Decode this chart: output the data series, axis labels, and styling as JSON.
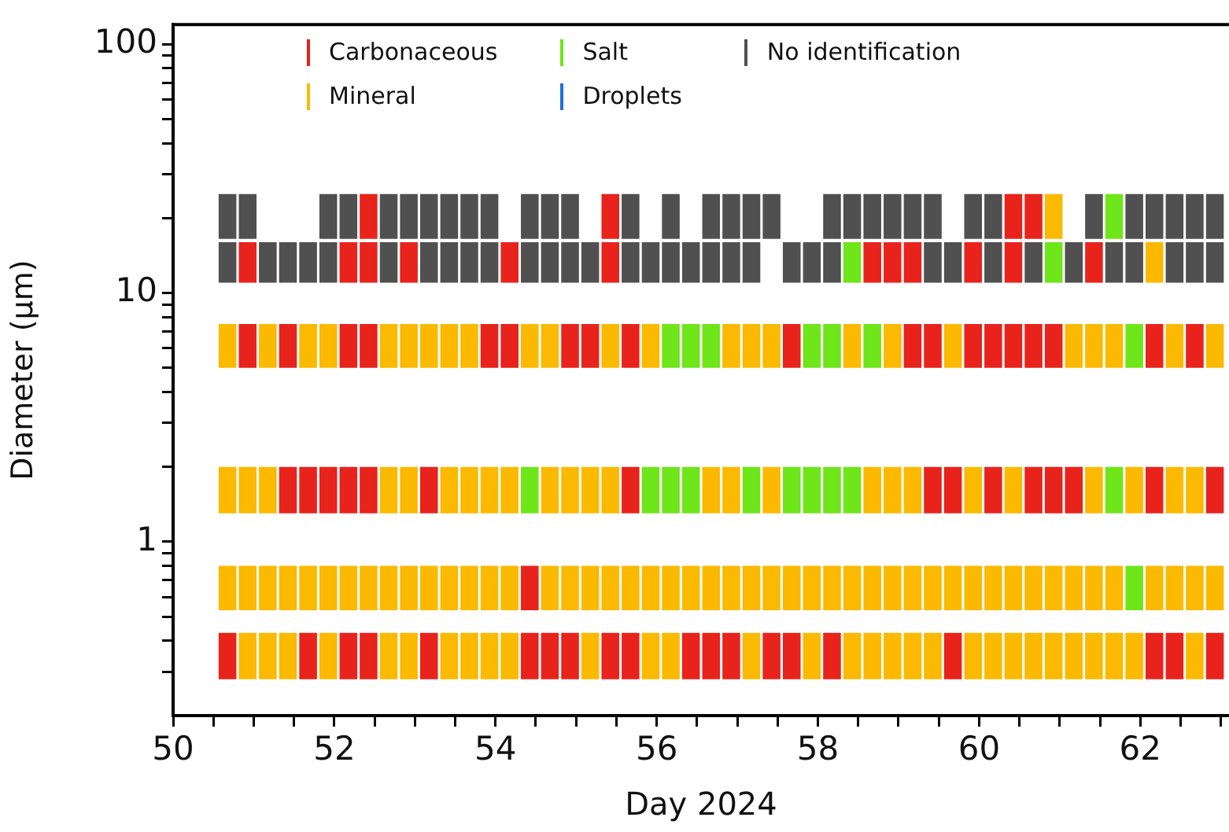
{
  "chart_data": {
    "type": "bar",
    "xlabel": "Day 2024",
    "ylabel": "Diameter (μm)",
    "log": "y",
    "grid": false,
    "legend": "top",
    "xlim": [
      50,
      63.1
    ],
    "xticks": [
      50,
      {
        "value": 50.5,
        "label": null
      },
      {
        "value": 51,
        "label": null
      },
      {
        "value": 51.5,
        "label": null
      },
      52,
      {
        "value": 52.5,
        "label": null
      },
      {
        "value": 53,
        "label": null
      },
      {
        "value": 53.5,
        "label": null
      },
      54,
      {
        "value": 54.5,
        "label": null
      },
      {
        "value": 55,
        "label": null
      },
      {
        "value": 55.5,
        "label": null
      },
      56,
      {
        "value": 56.5,
        "label": null
      },
      {
        "value": 57,
        "label": null
      },
      {
        "value": 57.5,
        "label": null
      },
      58,
      {
        "value": 58.5,
        "label": null
      },
      {
        "value": 59,
        "label": null
      },
      {
        "value": 59.5,
        "label": null
      },
      60,
      {
        "value": 60.5,
        "label": null
      },
      {
        "value": 61,
        "label": null
      },
      {
        "value": 61.5,
        "label": null
      },
      62,
      {
        "value": 62.5,
        "label": null
      },
      {
        "value": 63,
        "label": null
      }
    ],
    "ylim": [
      0.2,
      120
    ],
    "yticks": [
      {
        "value": 0.3,
        "label": null
      },
      {
        "value": 0.4,
        "label": null
      },
      {
        "value": 0.5,
        "label": null
      },
      {
        "value": 0.6,
        "label": null
      },
      {
        "value": 0.7,
        "label": null
      },
      {
        "value": 0.8,
        "label": null
      },
      {
        "value": 0.9,
        "label": null
      },
      1,
      {
        "value": 2,
        "label": null
      },
      {
        "value": 3,
        "label": null
      },
      {
        "value": 4,
        "label": null
      },
      {
        "value": 5,
        "label": null
      },
      {
        "value": 6,
        "label": null
      },
      {
        "value": 7,
        "label": null
      },
      {
        "value": 8,
        "label": null
      },
      {
        "value": 9,
        "label": null
      },
      10,
      {
        "value": 20,
        "label": null
      },
      {
        "value": 30,
        "label": null
      },
      {
        "value": 40,
        "label": null
      },
      {
        "value": 50,
        "label": null
      },
      {
        "value": 60,
        "label": null
      },
      {
        "value": 70,
        "label": null
      },
      {
        "value": 80,
        "label": null
      },
      {
        "value": 90,
        "label": null
      },
      100
    ],
    "series": [
      {
        "name": "Carbonaceous",
        "color": "#e8231c"
      },
      {
        "name": "Mineral",
        "color": "#fbb900"
      },
      {
        "name": "Salt",
        "color": "#6ee619"
      },
      {
        "name": "Droplets",
        "color": "#1f6fd6"
      },
      {
        "name": "No identification",
        "color": "#505050"
      },
      {
        "x": [
          50.675,
          50.925,
          51.175,
          51.425,
          51.675,
          51.925,
          52.175,
          52.425,
          52.675,
          52.925,
          53.175,
          53.425,
          53.675,
          53.925,
          54.175,
          54.425,
          54.675,
          54.925,
          55.175,
          55.425,
          55.675,
          55.925,
          56.175,
          56.425,
          56.675,
          56.925,
          57.175,
          57.425,
          57.675,
          57.925,
          58.175,
          58.425,
          58.675,
          58.925,
          59.175,
          59.425,
          59.675,
          59.925,
          60.175,
          60.425,
          60.675,
          60.925,
          61.175,
          61.425,
          61.675,
          61.925,
          62.175,
          62.425,
          62.675,
          62.925
        ],
        "base": [
          0.28,
          0.28,
          0.28,
          0.28,
          0.28,
          0.28,
          0.28,
          0.28,
          0.28,
          0.28,
          0.28,
          0.28,
          0.28,
          0.28,
          0.28,
          0.28,
          0.28,
          0.28,
          0.28,
          0.28,
          0.28,
          0.28,
          0.28,
          0.28,
          0.28,
          0.28,
          0.28,
          0.28,
          0.28,
          0.28,
          0.28,
          0.28,
          0.28,
          0.28,
          0.28,
          0.28,
          0.28,
          0.28,
          0.28,
          0.28,
          0.28,
          0.28,
          0.28,
          0.28,
          0.28,
          0.28,
          0.28,
          0.28,
          0.28,
          0.28
        ],
        "values": [
          0.15,
          0.15,
          0.15,
          0.15,
          0.15,
          0.15,
          0.15,
          0.15,
          0.15,
          0.15,
          0.15,
          0.15,
          0.15,
          0.15,
          0.15,
          0.15,
          0.15,
          0.15,
          0.15,
          0.15,
          0.15,
          0.15,
          0.15,
          0.15,
          0.15,
          0.15,
          0.15,
          0.15,
          0.15,
          0.15,
          0.15,
          0.15,
          0.15,
          0.15,
          0.15,
          0.15,
          0.15,
          0.15,
          0.15,
          0.15,
          0.15,
          0.15,
          0.15,
          0.15,
          0.15,
          0.15,
          0.15,
          0.15,
          0.15,
          0.15
        ],
        "colors": [
          "#e8231c",
          "#fbb900",
          "#fbb900",
          "#fbb900",
          "#e8231c",
          "#fbb900",
          "#e8231c",
          "#e8231c",
          "#fbb900",
          "#fbb900",
          "#e8231c",
          "#fbb900",
          "#fbb900",
          "#fbb900",
          "#fbb900",
          "#e8231c",
          "#e8231c",
          "#e8231c",
          "#fbb900",
          "#e8231c",
          "#e8231c",
          "#fbb900",
          "#fbb900",
          "#e8231c",
          "#e8231c",
          "#e8231c",
          "#fbb900",
          "#e8231c",
          "#e8231c",
          "#fbb900",
          "#e8231c",
          "#fbb900",
          "#fbb900",
          "#fbb900",
          "#fbb900",
          "#fbb900",
          "#e8231c",
          "#fbb900",
          "#fbb900",
          "#fbb900",
          "#fbb900",
          "#fbb900",
          "#fbb900",
          "#fbb900",
          "#fbb900",
          "#fbb900",
          "#e8231c",
          "#e8231c",
          "#fbb900",
          "#e8231c"
        ]
      },
      {
        "x": [
          50.675,
          50.925,
          51.175,
          51.425,
          51.675,
          51.925,
          52.175,
          52.425,
          52.675,
          52.925,
          53.175,
          53.425,
          53.675,
          53.925,
          54.175,
          54.425,
          54.675,
          54.925,
          55.175,
          55.425,
          55.675,
          55.925,
          56.175,
          56.425,
          56.675,
          56.925,
          57.175,
          57.425,
          57.675,
          57.925,
          58.175,
          58.425,
          58.675,
          58.925,
          59.175,
          59.425,
          59.675,
          59.925,
          60.175,
          60.425,
          60.675,
          60.925,
          61.175,
          61.425,
          61.675,
          61.925,
          62.175,
          62.425,
          62.675,
          62.925
        ],
        "base": [
          0.53,
          0.53,
          0.53,
          0.53,
          0.53,
          0.53,
          0.53,
          0.53,
          0.53,
          0.53,
          0.53,
          0.53,
          0.53,
          0.53,
          0.53,
          0.53,
          0.53,
          0.53,
          0.53,
          0.53,
          0.53,
          0.53,
          0.53,
          0.53,
          0.53,
          0.53,
          0.53,
          0.53,
          0.53,
          0.53,
          0.53,
          0.53,
          0.53,
          0.53,
          0.53,
          0.53,
          0.53,
          0.53,
          0.53,
          0.53,
          0.53,
          0.53,
          0.53,
          0.53,
          0.53,
          0.53,
          0.53,
          0.53,
          0.53,
          0.53
        ],
        "values": [
          0.27,
          0.27,
          0.27,
          0.27,
          0.27,
          0.27,
          0.27,
          0.27,
          0.27,
          0.27,
          0.27,
          0.27,
          0.27,
          0.27,
          0.27,
          0.27,
          0.27,
          0.27,
          0.27,
          0.27,
          0.27,
          0.27,
          0.27,
          0.27,
          0.27,
          0.27,
          0.27,
          0.27,
          0.27,
          0.27,
          0.27,
          0.27,
          0.27,
          0.27,
          0.27,
          0.27,
          0.27,
          0.27,
          0.27,
          0.27,
          0.27,
          0.27,
          0.27,
          0.27,
          0.27,
          0.27,
          0.27,
          0.27,
          0.27,
          0.27
        ],
        "colors": [
          "#fbb900",
          "#fbb900",
          "#fbb900",
          "#fbb900",
          "#fbb900",
          "#fbb900",
          "#fbb900",
          "#fbb900",
          "#fbb900",
          "#fbb900",
          "#fbb900",
          "#fbb900",
          "#fbb900",
          "#fbb900",
          "#fbb900",
          "#e8231c",
          "#fbb900",
          "#fbb900",
          "#fbb900",
          "#fbb900",
          "#fbb900",
          "#fbb900",
          "#fbb900",
          "#fbb900",
          "#fbb900",
          "#fbb900",
          "#fbb900",
          "#fbb900",
          "#fbb900",
          "#fbb900",
          "#fbb900",
          "#fbb900",
          "#fbb900",
          "#fbb900",
          "#fbb900",
          "#fbb900",
          "#fbb900",
          "#fbb900",
          "#fbb900",
          "#fbb900",
          "#fbb900",
          "#fbb900",
          "#fbb900",
          "#fbb900",
          "#fbb900",
          "#6ee619",
          "#fbb900",
          "#fbb900",
          "#fbb900",
          "#fbb900"
        ]
      },
      {
        "x": [
          50.675,
          50.925,
          51.175,
          51.425,
          51.675,
          51.925,
          52.175,
          52.425,
          52.675,
          52.925,
          53.175,
          53.425,
          53.675,
          53.925,
          54.175,
          54.425,
          54.675,
          54.925,
          55.175,
          55.425,
          55.675,
          55.925,
          56.175,
          56.425,
          56.675,
          56.925,
          57.175,
          57.425,
          57.675,
          57.925,
          58.175,
          58.425,
          58.675,
          58.925,
          59.175,
          59.425,
          59.675,
          59.925,
          60.175,
          60.425,
          60.675,
          60.925,
          61.175,
          61.425,
          61.675,
          61.925,
          62.175,
          62.425,
          62.675,
          62.925
        ],
        "base": [
          1.3,
          1.3,
          1.3,
          1.3,
          1.3,
          1.3,
          1.3,
          1.3,
          1.3,
          1.3,
          1.3,
          1.3,
          1.3,
          1.3,
          1.3,
          1.3,
          1.3,
          1.3,
          1.3,
          1.3,
          1.3,
          1.3,
          1.3,
          1.3,
          1.3,
          1.3,
          1.3,
          1.3,
          1.3,
          1.3,
          1.3,
          1.3,
          1.3,
          1.3,
          1.3,
          1.3,
          1.3,
          1.3,
          1.3,
          1.3,
          1.3,
          1.3,
          1.3,
          1.3,
          1.3,
          1.3,
          1.3,
          1.3,
          1.3,
          1.3
        ],
        "values": [
          0.7,
          0.7,
          0.7,
          0.7,
          0.7,
          0.7,
          0.7,
          0.7,
          0.7,
          0.7,
          0.7,
          0.7,
          0.7,
          0.7,
          0.7,
          0.7,
          0.7,
          0.7,
          0.7,
          0.7,
          0.7,
          0.7,
          0.7,
          0.7,
          0.7,
          0.7,
          0.7,
          0.7,
          0.7,
          0.7,
          0.7,
          0.7,
          0.7,
          0.7,
          0.7,
          0.7,
          0.7,
          0.7,
          0.7,
          0.7,
          0.7,
          0.7,
          0.7,
          0.7,
          0.7,
          0.7,
          0.7,
          0.7,
          0.7,
          0.7
        ],
        "colors": [
          "#fbb900",
          "#fbb900",
          "#fbb900",
          "#e8231c",
          "#e8231c",
          "#e8231c",
          "#e8231c",
          "#e8231c",
          "#fbb900",
          "#fbb900",
          "#e8231c",
          "#fbb900",
          "#fbb900",
          "#fbb900",
          "#fbb900",
          "#6ee619",
          "#fbb900",
          "#fbb900",
          "#fbb900",
          "#fbb900",
          "#e8231c",
          "#6ee619",
          "#6ee619",
          "#6ee619",
          "#fbb900",
          "#fbb900",
          "#6ee619",
          "#fbb900",
          "#6ee619",
          "#6ee619",
          "#6ee619",
          "#6ee619",
          "#fbb900",
          "#fbb900",
          "#fbb900",
          "#e8231c",
          "#e8231c",
          "#fbb900",
          "#e8231c",
          "#fbb900",
          "#e8231c",
          "#e8231c",
          "#e8231c",
          "#fbb900",
          "#6ee619",
          "#fbb900",
          "#e8231c",
          "#fbb900",
          "#fbb900",
          "#e8231c"
        ]
      },
      {
        "x": [
          50.675,
          50.925,
          51.175,
          51.425,
          51.675,
          51.925,
          52.175,
          52.425,
          52.675,
          52.925,
          53.175,
          53.425,
          53.675,
          53.925,
          54.175,
          54.425,
          54.675,
          54.925,
          55.175,
          55.425,
          55.675,
          55.925,
          56.175,
          56.425,
          56.675,
          56.925,
          57.175,
          57.425,
          57.675,
          57.925,
          58.175,
          58.425,
          58.675,
          58.925,
          59.175,
          59.425,
          59.675,
          59.925,
          60.175,
          60.425,
          60.675,
          60.925,
          61.175,
          61.425,
          61.675,
          61.925,
          62.175,
          62.425,
          62.675,
          62.925
        ],
        "base": [
          5,
          5,
          5,
          5,
          5,
          5,
          5,
          5,
          5,
          5,
          5,
          5,
          5,
          5,
          5,
          5,
          5,
          5,
          5,
          5,
          5,
          5,
          5,
          5,
          5,
          5,
          5,
          5,
          5,
          5,
          5,
          5,
          5,
          5,
          5,
          5,
          5,
          5,
          5,
          5,
          5,
          5,
          5,
          5,
          5,
          5,
          5,
          5,
          5,
          5
        ],
        "values": [
          2.5,
          2.5,
          2.5,
          2.5,
          2.5,
          2.5,
          2.5,
          2.5,
          2.5,
          2.5,
          2.5,
          2.5,
          2.5,
          2.5,
          2.5,
          2.5,
          2.5,
          2.5,
          2.5,
          2.5,
          2.5,
          2.5,
          2.5,
          2.5,
          2.5,
          2.5,
          2.5,
          2.5,
          2.5,
          2.5,
          2.5,
          2.5,
          2.5,
          2.5,
          2.5,
          2.5,
          2.5,
          2.5,
          2.5,
          2.5,
          2.5,
          2.5,
          2.5,
          2.5,
          2.5,
          2.5,
          2.5,
          2.5,
          2.5,
          2.5
        ],
        "colors": [
          "#fbb900",
          "#e8231c",
          "#fbb900",
          "#e8231c",
          "#fbb900",
          "#fbb900",
          "#e8231c",
          "#e8231c",
          "#fbb900",
          "#fbb900",
          "#fbb900",
          "#fbb900",
          "#fbb900",
          "#e8231c",
          "#e8231c",
          "#fbb900",
          "#fbb900",
          "#e8231c",
          "#e8231c",
          "#fbb900",
          "#e8231c",
          "#fbb900",
          "#6ee619",
          "#6ee619",
          "#6ee619",
          "#fbb900",
          "#fbb900",
          "#fbb900",
          "#e8231c",
          "#6ee619",
          "#6ee619",
          "#fbb900",
          "#6ee619",
          "#fbb900",
          "#e8231c",
          "#e8231c",
          "#fbb900",
          "#e8231c",
          "#e8231c",
          "#e8231c",
          "#e8231c",
          "#e8231c",
          "#fbb900",
          "#fbb900",
          "#fbb900",
          "#6ee619",
          "#e8231c",
          "#fbb900",
          "#e8231c",
          "#fbb900"
        ]
      },
      {
        "x": [
          50.675,
          50.925,
          51.175,
          51.425,
          51.675,
          51.925,
          52.175,
          52.425,
          52.675,
          52.925,
          53.175,
          53.425,
          53.675,
          53.925,
          54.175,
          54.425,
          54.675,
          54.925,
          55.175,
          55.425,
          55.675,
          55.925,
          56.175,
          56.425,
          56.675,
          56.925,
          57.175,
          57.675,
          57.925,
          58.175,
          58.425,
          58.675,
          58.925,
          59.175,
          59.425,
          59.675,
          59.925,
          60.175,
          60.425,
          60.675,
          60.925,
          61.175,
          61.425,
          61.675,
          61.925,
          62.175,
          62.425,
          62.675,
          62.925
        ],
        "base": [
          11,
          11,
          11,
          11,
          11,
          11,
          11,
          11,
          11,
          11,
          11,
          11,
          11,
          11,
          11,
          11,
          11,
          11,
          11,
          11,
          11,
          11,
          11,
          11,
          11,
          11,
          11,
          11,
          11,
          11,
          11,
          11,
          11,
          11,
          11,
          11,
          11,
          11,
          11,
          11,
          11,
          11,
          11,
          11,
          11,
          11,
          11,
          11,
          11
        ],
        "values": [
          5,
          5,
          5,
          5,
          5,
          5,
          5,
          5,
          5,
          5,
          5,
          5,
          5,
          5,
          5,
          5,
          5,
          5,
          5,
          5,
          5,
          5,
          5,
          5,
          5,
          5,
          5,
          5,
          5,
          5,
          5,
          5,
          5,
          5,
          5,
          5,
          5,
          5,
          5,
          5,
          5,
          5,
          5,
          5,
          5,
          5,
          5,
          5,
          5
        ],
        "colors": [
          "#505050",
          "#e8231c",
          "#505050",
          "#505050",
          "#505050",
          "#505050",
          "#e8231c",
          "#e8231c",
          "#505050",
          "#e8231c",
          "#505050",
          "#505050",
          "#505050",
          "#505050",
          "#e8231c",
          "#505050",
          "#505050",
          "#505050",
          "#505050",
          "#e8231c",
          "#505050",
          "#505050",
          "#505050",
          "#505050",
          "#505050",
          "#505050",
          "#505050",
          "#505050",
          "#505050",
          "#505050",
          "#6ee619",
          "#e8231c",
          "#e8231c",
          "#e8231c",
          "#505050",
          "#505050",
          "#e8231c",
          "#505050",
          "#e8231c",
          "#505050",
          "#6ee619",
          "#505050",
          "#e8231c",
          "#505050",
          "#505050",
          "#fbb900",
          "#505050",
          "#505050",
          "#505050"
        ]
      },
      {
        "x": [
          50.675,
          50.925,
          51.925,
          52.175,
          52.425,
          52.675,
          52.925,
          53.175,
          53.425,
          53.675,
          53.925,
          54.425,
          54.675,
          54.925,
          55.425,
          55.675,
          56.175,
          56.675,
          56.925,
          57.175,
          57.425,
          58.175,
          58.425,
          58.675,
          58.925,
          59.175,
          59.425,
          59.925,
          60.175,
          60.425,
          60.675,
          60.925,
          61.425,
          61.675,
          61.925,
          62.175,
          62.425,
          62.675,
          62.925
        ],
        "base": [
          16.5,
          16.5,
          16.5,
          16.5,
          16.5,
          16.5,
          16.5,
          16.5,
          16.5,
          16.5,
          16.5,
          16.5,
          16.5,
          16.5,
          16.5,
          16.5,
          16.5,
          16.5,
          16.5,
          16.5,
          16.5,
          16.5,
          16.5,
          16.5,
          16.5,
          16.5,
          16.5,
          16.5,
          16.5,
          16.5,
          16.5,
          16.5,
          16.5,
          16.5,
          16.5,
          16.5,
          16.5,
          16.5,
          16.5
        ],
        "values": [
          8.5,
          8.5,
          8.5,
          8.5,
          8.5,
          8.5,
          8.5,
          8.5,
          8.5,
          8.5,
          8.5,
          8.5,
          8.5,
          8.5,
          8.5,
          8.5,
          8.5,
          8.5,
          8.5,
          8.5,
          8.5,
          8.5,
          8.5,
          8.5,
          8.5,
          8.5,
          8.5,
          8.5,
          8.5,
          8.5,
          8.5,
          8.5,
          8.5,
          8.5,
          8.5,
          8.5,
          8.5,
          8.5,
          8.5
        ],
        "colors": [
          "#505050",
          "#505050",
          "#505050",
          "#505050",
          "#e8231c",
          "#505050",
          "#505050",
          "#505050",
          "#505050",
          "#505050",
          "#505050",
          "#505050",
          "#505050",
          "#505050",
          "#e8231c",
          "#505050",
          "#505050",
          "#505050",
          "#505050",
          "#505050",
          "#505050",
          "#505050",
          "#505050",
          "#505050",
          "#505050",
          "#505050",
          "#505050",
          "#505050",
          "#505050",
          "#e8231c",
          "#e8231c",
          "#fbb900",
          "#505050",
          "#6ee619",
          "#505050",
          "#505050",
          "#505050",
          "#505050",
          "#505050"
        ]
      }
    ]
  }
}
